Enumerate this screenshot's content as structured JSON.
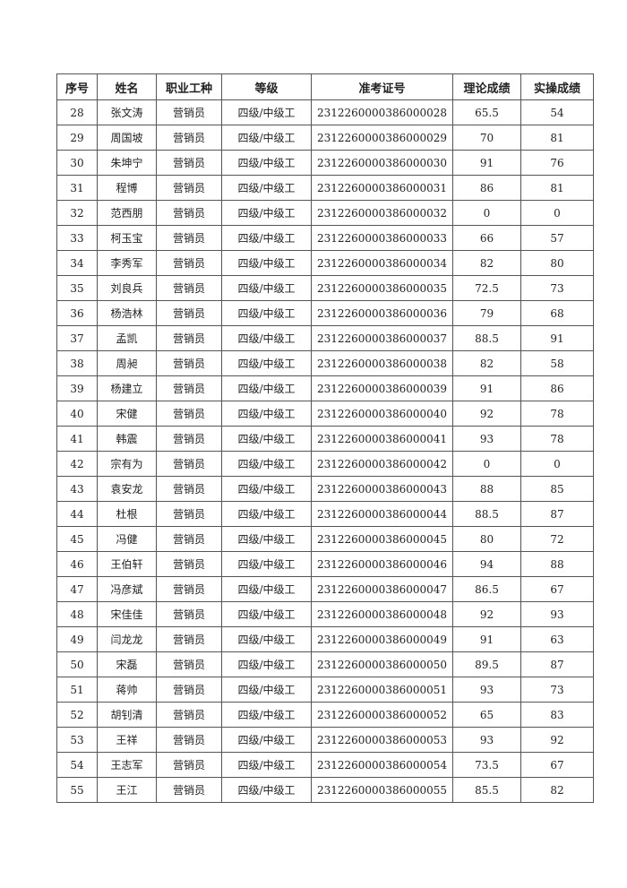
{
  "table": {
    "headers": [
      "序号",
      "姓名",
      "职业工种",
      "等级",
      "准考证号",
      "理论成绩",
      "实操成绩"
    ],
    "rows": [
      [
        "28",
        "张文涛",
        "营销员",
        "四级/中级工",
        "2312260000386000028",
        "65.5",
        "54"
      ],
      [
        "29",
        "周国坡",
        "营销员",
        "四级/中级工",
        "2312260000386000029",
        "70",
        "81"
      ],
      [
        "30",
        "朱坤宁",
        "营销员",
        "四级/中级工",
        "2312260000386000030",
        "91",
        "76"
      ],
      [
        "31",
        "程博",
        "营销员",
        "四级/中级工",
        "2312260000386000031",
        "86",
        "81"
      ],
      [
        "32",
        "范西朋",
        "营销员",
        "四级/中级工",
        "2312260000386000032",
        "0",
        "0"
      ],
      [
        "33",
        "柯玉宝",
        "营销员",
        "四级/中级工",
        "2312260000386000033",
        "66",
        "57"
      ],
      [
        "34",
        "李秀军",
        "营销员",
        "四级/中级工",
        "2312260000386000034",
        "82",
        "80"
      ],
      [
        "35",
        "刘良兵",
        "营销员",
        "四级/中级工",
        "2312260000386000035",
        "72.5",
        "73"
      ],
      [
        "36",
        "杨浩林",
        "营销员",
        "四级/中级工",
        "2312260000386000036",
        "79",
        "68"
      ],
      [
        "37",
        "孟凯",
        "营销员",
        "四级/中级工",
        "2312260000386000037",
        "88.5",
        "91"
      ],
      [
        "38",
        "周昶",
        "营销员",
        "四级/中级工",
        "2312260000386000038",
        "82",
        "58"
      ],
      [
        "39",
        "杨建立",
        "营销员",
        "四级/中级工",
        "2312260000386000039",
        "91",
        "86"
      ],
      [
        "40",
        "宋健",
        "营销员",
        "四级/中级工",
        "2312260000386000040",
        "92",
        "78"
      ],
      [
        "41",
        "韩震",
        "营销员",
        "四级/中级工",
        "2312260000386000041",
        "93",
        "78"
      ],
      [
        "42",
        "宗有为",
        "营销员",
        "四级/中级工",
        "2312260000386000042",
        "0",
        "0"
      ],
      [
        "43",
        "袁安龙",
        "营销员",
        "四级/中级工",
        "2312260000386000043",
        "88",
        "85"
      ],
      [
        "44",
        "杜根",
        "营销员",
        "四级/中级工",
        "2312260000386000044",
        "88.5",
        "87"
      ],
      [
        "45",
        "冯健",
        "营销员",
        "四级/中级工",
        "2312260000386000045",
        "80",
        "72"
      ],
      [
        "46",
        "王伯轩",
        "营销员",
        "四级/中级工",
        "2312260000386000046",
        "94",
        "88"
      ],
      [
        "47",
        "冯彦斌",
        "营销员",
        "四级/中级工",
        "2312260000386000047",
        "86.5",
        "67"
      ],
      [
        "48",
        "宋佳佳",
        "营销员",
        "四级/中级工",
        "2312260000386000048",
        "92",
        "93"
      ],
      [
        "49",
        "闫龙龙",
        "营销员",
        "四级/中级工",
        "2312260000386000049",
        "91",
        "63"
      ],
      [
        "50",
        "宋磊",
        "营销员",
        "四级/中级工",
        "2312260000386000050",
        "89.5",
        "87"
      ],
      [
        "51",
        "蒋帅",
        "营销员",
        "四级/中级工",
        "2312260000386000051",
        "93",
        "73"
      ],
      [
        "52",
        "胡钊清",
        "营销员",
        "四级/中级工",
        "2312260000386000052",
        "65",
        "83"
      ],
      [
        "53",
        "王祥",
        "营销员",
        "四级/中级工",
        "2312260000386000053",
        "93",
        "92"
      ],
      [
        "54",
        "王志军",
        "营销员",
        "四级/中级工",
        "2312260000386000054",
        "73.5",
        "67"
      ],
      [
        "55",
        "王江",
        "营销员",
        "四级/中级工",
        "2312260000386000055",
        "85.5",
        "82"
      ]
    ]
  }
}
